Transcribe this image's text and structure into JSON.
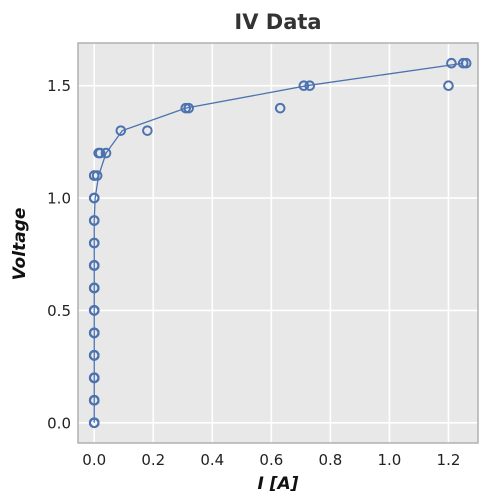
{
  "chart_data": {
    "type": "scatter",
    "title": "IV Data",
    "xlabel": "I [A]",
    "ylabel": "Voltage",
    "xlim": [
      -0.055,
      1.3
    ],
    "ylim": [
      -0.09,
      1.69
    ],
    "xticks": [
      0.0,
      0.2,
      0.4,
      0.6,
      0.8,
      1.0,
      1.2
    ],
    "xtick_labels": [
      "0.0",
      "0.2",
      "0.4",
      "0.6",
      "0.8",
      "1.0",
      "1.2"
    ],
    "yticks": [
      0.0,
      0.5,
      1.0,
      1.5
    ],
    "ytick_labels": [
      "0.0",
      "0.5",
      "1.0",
      "1.5"
    ],
    "grid": true,
    "colors": {
      "series": "#4c72b0",
      "plot_bg": "#e8e8e8",
      "grid": "#ffffff",
      "frame": "#b0b0b0"
    },
    "series": [
      {
        "kind": "points",
        "x": [
          0.0,
          0.0,
          0.0,
          0.0,
          0.0,
          0.0,
          0.0,
          0.0,
          0.0,
          0.0,
          0.0,
          0.0,
          0.0,
          0.0,
          0.0,
          0.0,
          0.0,
          0.0,
          0.0,
          0.0,
          0.0,
          0.0,
          0.0,
          0.0,
          0.0,
          0.0,
          0.0,
          0.0,
          0.0,
          0.0,
          0.0,
          0.0,
          0.0,
          0.0,
          0.0,
          0.0,
          0.0,
          0.0,
          0.0,
          0.0,
          0.0,
          0.0,
          0.0,
          0.01,
          0.0,
          0.0,
          0.02,
          0.04,
          0.015,
          0.09,
          0.18,
          0.31,
          0.32,
          0.63,
          0.71,
          0.73,
          1.2,
          1.21,
          1.25,
          1.26
        ],
        "y": [
          0.0,
          0.0,
          0.0,
          0.0,
          0.0,
          0.1,
          0.1,
          0.1,
          0.1,
          0.1,
          0.1,
          0.2,
          0.2,
          0.2,
          0.2,
          0.2,
          0.2,
          0.3,
          0.3,
          0.3,
          0.3,
          0.3,
          0.3,
          0.4,
          0.4,
          0.4,
          0.4,
          0.4,
          0.4,
          0.5,
          0.5,
          0.5,
          0.5,
          0.6,
          0.6,
          0.6,
          0.6,
          0.6,
          0.7,
          0.7,
          0.7,
          0.7,
          0.7,
          1.1,
          1.1,
          1.1,
          1.2,
          1.2,
          1.2,
          1.3,
          1.3,
          1.4,
          1.4,
          1.4,
          1.5,
          1.5,
          1.5,
          1.6,
          1.6,
          1.6
        ]
      },
      {
        "kind": "points",
        "x": [
          0.0,
          0.0,
          0.0,
          0.0,
          0.0,
          0.0,
          0.0,
          0.0,
          0.0
        ],
        "y": [
          0.8,
          0.8,
          0.8,
          0.9,
          0.9,
          0.9,
          1.0,
          1.0,
          1.0
        ]
      },
      {
        "kind": "fit-line",
        "x": [
          0.0,
          0.0,
          0.0,
          0.0,
          0.0,
          0.0,
          0.0,
          0.0,
          0.0,
          0.0,
          0.003,
          0.015,
          0.04,
          0.095,
          0.31,
          0.72,
          1.25
        ],
        "y": [
          0.0,
          0.1,
          0.2,
          0.3,
          0.4,
          0.5,
          0.6,
          0.7,
          0.8,
          0.9,
          1.0,
          1.1,
          1.2,
          1.3,
          1.4,
          1.5,
          1.6
        ]
      }
    ]
  }
}
